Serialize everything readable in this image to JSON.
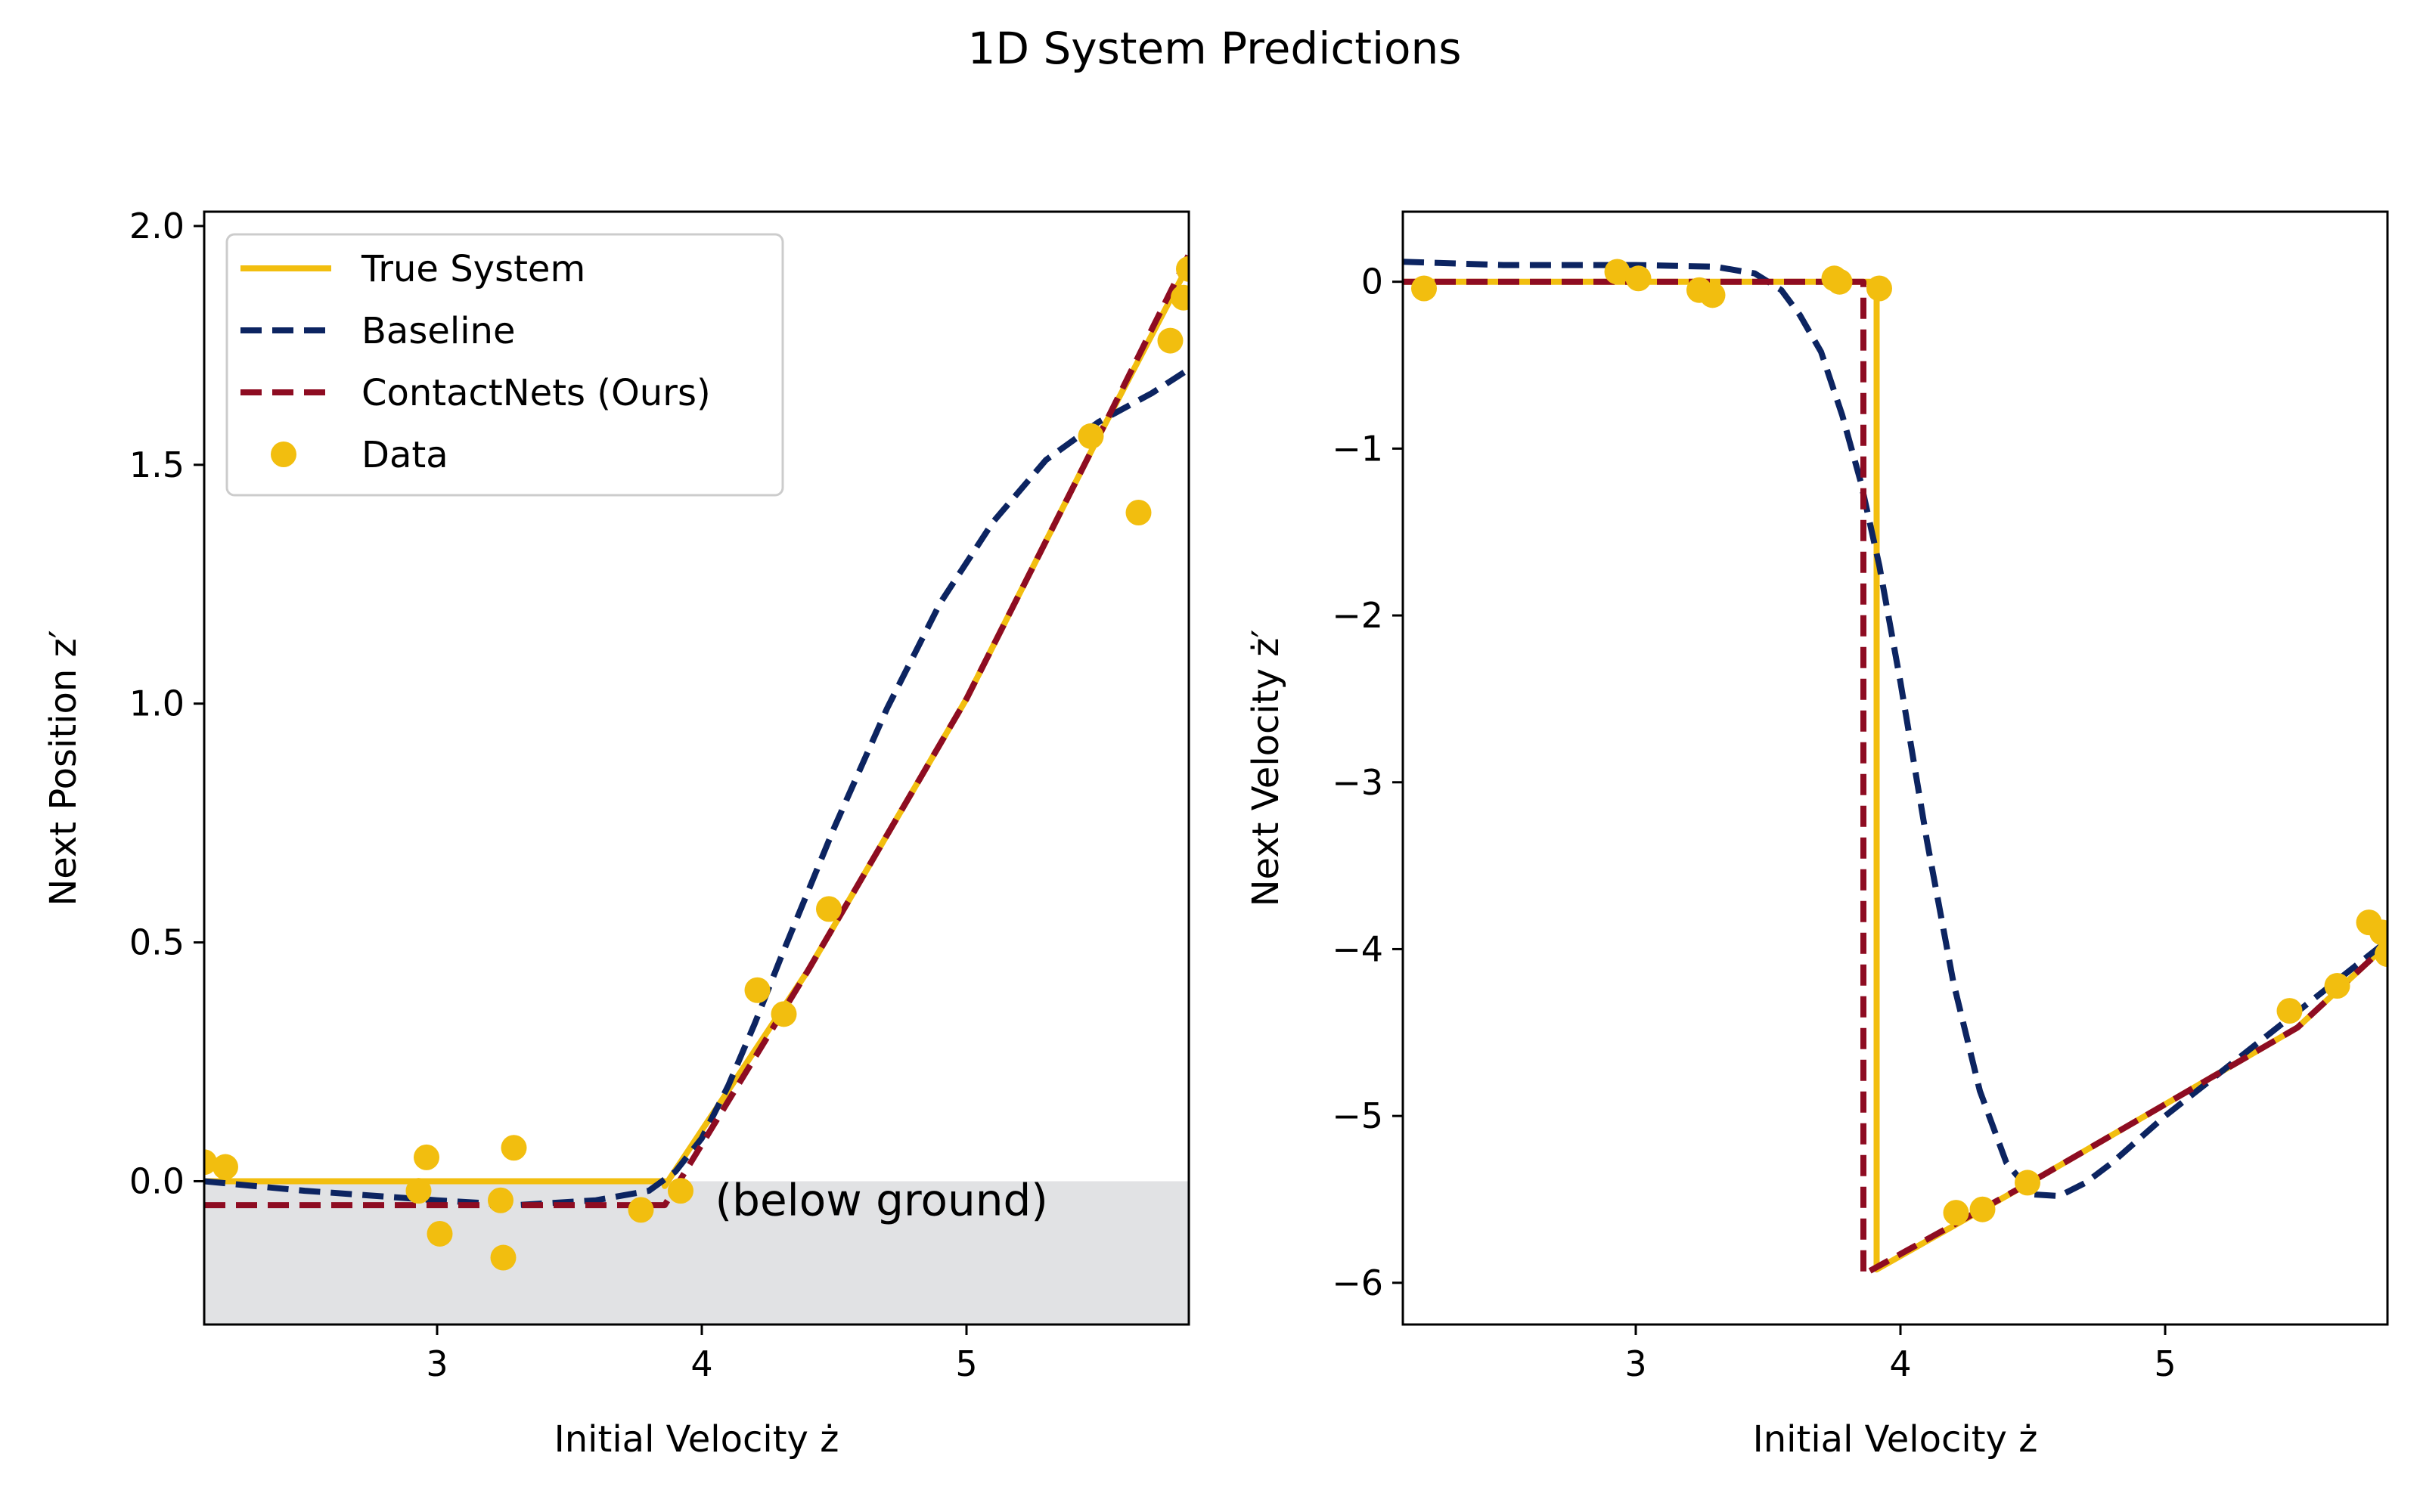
{
  "figure": {
    "title": "1D System Predictions"
  },
  "colors": {
    "true_system": "#f2be0f",
    "baseline": "#0c2461",
    "contactnets": "#8e0c22",
    "data": "#f2be0f",
    "ground": "#e1e2e4"
  },
  "chart_data": [
    {
      "type": "line",
      "xlabel": "Initial Velocity ż",
      "ylabel": "Next Position z′",
      "xlim": [
        2.12,
        5.84
      ],
      "ylim": [
        -0.3,
        2.03
      ],
      "xticks": [
        3,
        4,
        5
      ],
      "yticks": [
        0.0,
        0.5,
        1.0,
        1.5,
        2.0
      ],
      "xtick_labels": [
        "3",
        "4",
        "5"
      ],
      "ytick_labels": [
        "0.0",
        "0.5",
        "1.0",
        "1.5",
        "2.0"
      ],
      "ground_region": {
        "y_from": -0.3,
        "y_to": 0.0
      },
      "annotation": {
        "text": "(below ground)",
        "x": 4.05,
        "y": -0.04
      },
      "legend": {
        "placement": "upper-left",
        "entries": [
          "True System",
          "Baseline",
          "ContactNets (Ours)",
          "Data"
        ]
      },
      "series": [
        {
          "name": "True System",
          "style": "solid",
          "x": [
            2.12,
            3.86,
            3.86,
            4.4,
            5.0,
            5.5,
            5.84
          ],
          "y": [
            0.0,
            0.0,
            -0.01,
            0.44,
            1.01,
            1.56,
            1.92
          ]
        },
        {
          "name": "Baseline",
          "style": "dashed",
          "x": [
            2.12,
            2.5,
            3.0,
            3.3,
            3.6,
            3.8,
            3.9,
            4.0,
            4.1,
            4.2,
            4.3,
            4.5,
            4.7,
            4.9,
            5.1,
            5.3,
            5.5,
            5.7,
            5.84
          ],
          "y": [
            0.0,
            -0.02,
            -0.04,
            -0.05,
            -0.04,
            -0.02,
            0.02,
            0.09,
            0.2,
            0.33,
            0.47,
            0.74,
            0.99,
            1.21,
            1.38,
            1.51,
            1.59,
            1.65,
            1.7
          ]
        },
        {
          "name": "ContactNets (Ours)",
          "style": "dashed",
          "x": [
            2.12,
            3.86,
            4.4,
            5.0,
            5.5,
            5.84
          ],
          "y": [
            -0.05,
            -0.05,
            0.44,
            1.01,
            1.56,
            1.94
          ]
        },
        {
          "name": "Data",
          "style": "scatter",
          "x": [
            2.12,
            2.2,
            2.93,
            2.96,
            3.01,
            3.24,
            3.25,
            3.29,
            3.77,
            3.92,
            4.21,
            4.31,
            4.48,
            5.47,
            5.65,
            5.77,
            5.82,
            5.84
          ],
          "y": [
            0.04,
            0.03,
            -0.02,
            0.05,
            -0.11,
            -0.04,
            -0.16,
            0.07,
            -0.06,
            -0.02,
            0.4,
            0.35,
            0.57,
            1.56,
            1.4,
            1.76,
            1.85,
            1.91
          ]
        }
      ]
    },
    {
      "type": "line",
      "xlabel": "Initial Velocity ż",
      "ylabel": "Next Velocity ż′",
      "xlim": [
        2.12,
        5.84
      ],
      "ylim": [
        -6.25,
        0.42
      ],
      "xticks": [
        3,
        4,
        5
      ],
      "yticks": [
        0,
        -1,
        -2,
        -3,
        -4,
        -5,
        -6
      ],
      "xtick_labels": [
        "3",
        "4",
        "5"
      ],
      "ytick_labels": [
        "0",
        "−1",
        "−2",
        "−3",
        "−4",
        "−5",
        "−6"
      ],
      "series": [
        {
          "name": "True System",
          "style": "solid",
          "x": [
            2.12,
            3.91,
            3.91,
            4.5,
            5.0,
            5.5,
            5.84
          ],
          "y": [
            0.0,
            0.0,
            -5.92,
            -5.39,
            -4.93,
            -4.47,
            -3.97
          ]
        },
        {
          "name": "Baseline",
          "style": "dashed",
          "x": [
            2.12,
            2.5,
            3.0,
            3.3,
            3.45,
            3.55,
            3.62,
            3.7,
            3.78,
            3.85,
            3.92,
            4.0,
            4.1,
            4.2,
            4.3,
            4.4,
            4.5,
            4.6,
            4.7,
            4.8,
            5.0,
            5.2,
            5.4,
            5.6,
            5.84
          ],
          "y": [
            0.12,
            0.1,
            0.1,
            0.09,
            0.05,
            -0.05,
            -0.2,
            -0.42,
            -0.8,
            -1.2,
            -1.7,
            -2.4,
            -3.35,
            -4.2,
            -4.85,
            -5.28,
            -5.47,
            -5.48,
            -5.4,
            -5.28,
            -5.0,
            -4.75,
            -4.5,
            -4.25,
            -3.95
          ]
        },
        {
          "name": "ContactNets (Ours)",
          "style": "dashed",
          "x": [
            2.12,
            3.86,
            3.86,
            4.5,
            5.0,
            5.5,
            5.84
          ],
          "y": [
            0.0,
            0.0,
            -5.95,
            -5.39,
            -4.93,
            -4.47,
            -3.97
          ]
        },
        {
          "name": "Data",
          "style": "scatter",
          "x": [
            2.2,
            2.93,
            3.01,
            3.24,
            3.29,
            3.75,
            3.77,
            3.92,
            4.21,
            4.31,
            4.48,
            5.47,
            5.65,
            5.77,
            5.82,
            5.84
          ],
          "y": [
            -0.04,
            0.06,
            0.02,
            -0.05,
            -0.08,
            0.02,
            0.0,
            -0.04,
            -5.58,
            -5.56,
            -5.4,
            -4.37,
            -4.22,
            -3.84,
            -3.9,
            -4.03
          ]
        }
      ]
    }
  ]
}
